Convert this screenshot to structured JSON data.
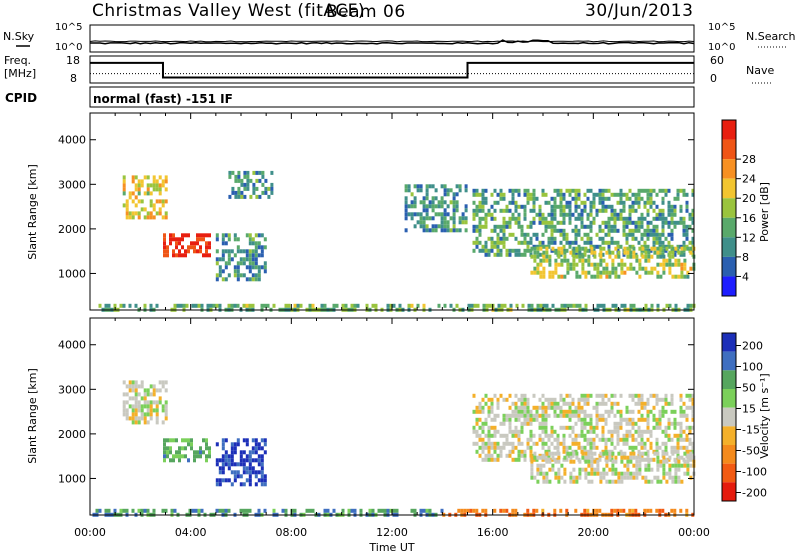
{
  "header": {
    "title": "Christmas Valley West (fitACF)",
    "beam": "Beam 06",
    "date": "30/Jun/2013"
  },
  "noise_panel": {
    "left_label": "N.Sky",
    "right_label": "N.Search",
    "ticks": [
      "10^5",
      "10^0"
    ],
    "sky_level": 0.3,
    "search_level": 0.6
  },
  "freq_panel": {
    "left_label_1": "Freq.",
    "left_label_2": "[MHz]",
    "left_ticks": [
      "18",
      "8"
    ],
    "right_label": "Nave",
    "right_ticks": [
      "60",
      "0"
    ],
    "segments": [
      {
        "start": 0,
        "end": 2.9,
        "freq": 16
      },
      {
        "start": 2.9,
        "end": 15.0,
        "freq": 10
      },
      {
        "start": 15.0,
        "end": 24,
        "freq": 16
      }
    ],
    "nave_level": 12
  },
  "cpid": {
    "label": "CPID",
    "text": "normal (fast) -151 IF"
  },
  "time_axis": {
    "label": "Time UT",
    "ticks": [
      "00:00",
      "04:00",
      "08:00",
      "12:00",
      "16:00",
      "20:00",
      "00:00"
    ],
    "range_hours": [
      0,
      24
    ]
  },
  "chart_data": [
    {
      "type": "heatmap",
      "name": "power",
      "ylabel": "Slant Range [km]",
      "yticks": [
        "1000",
        "2000",
        "3000",
        "4000"
      ],
      "ylim": [
        180,
        4600
      ],
      "colorbar_label": "Power [dB]",
      "colorbar_ticks": [
        "4",
        "8",
        "12",
        "16",
        "20",
        "24",
        "28"
      ],
      "colorbar_range": [
        0,
        32
      ],
      "colors": [
        "#1e1eff",
        "#2a5fb0",
        "#3f8f8a",
        "#59a96b",
        "#9ac43e",
        "#f2c530",
        "#f79022",
        "#ef5516",
        "#e81f10"
      ],
      "regions": [
        {
          "t0": 0.1,
          "t1": 24,
          "r0": 180,
          "r1": 320,
          "level": 0.4
        },
        {
          "t0": 1.3,
          "t1": 3.0,
          "r0": 2300,
          "r1": 3200,
          "level": 0.6
        },
        {
          "t0": 2.9,
          "t1": 4.8,
          "r0": 1400,
          "r1": 1900,
          "level": 0.95
        },
        {
          "t0": 5.0,
          "t1": 7.0,
          "r0": 900,
          "r1": 1900,
          "level": 0.3
        },
        {
          "t0": 5.5,
          "t1": 7.2,
          "r0": 2700,
          "r1": 3300,
          "level": 0.3
        },
        {
          "t0": 12.5,
          "t1": 15.0,
          "r0": 2000,
          "r1": 3000,
          "level": 0.3
        },
        {
          "t0": 15.2,
          "t1": 24,
          "r0": 1400,
          "r1": 2900,
          "level": 0.35
        },
        {
          "t0": 17.5,
          "t1": 24,
          "r0": 900,
          "r1": 1600,
          "level": 0.5
        }
      ]
    },
    {
      "type": "heatmap",
      "name": "velocity",
      "ylabel": "Slant Range [km]",
      "yticks": [
        "1000",
        "2000",
        "3000",
        "4000"
      ],
      "ylim": [
        180,
        4600
      ],
      "colorbar_label": "Velocity [m s⁻¹]",
      "colorbar_ticks": [
        "200",
        "100",
        "50",
        "15",
        "-15",
        "-50",
        "-100",
        "-200"
      ],
      "colorbar_range": [
        -250,
        250
      ],
      "colors": [
        "#1c2fb8",
        "#3f6fc0",
        "#56a65e",
        "#7bd05a",
        "#c9c9c0",
        "#f4b02a",
        "#f48a1c",
        "#f25a12",
        "#e51b0d"
      ],
      "regions": [
        {
          "t0": 0.1,
          "t1": 14,
          "r0": 180,
          "r1": 320,
          "level": -0.5
        },
        {
          "t0": 14,
          "t1": 24,
          "r0": 180,
          "r1": 320,
          "level": 0.5
        },
        {
          "t0": 1.3,
          "t1": 3.0,
          "r0": 2300,
          "r1": 3200,
          "level": 0.0
        },
        {
          "t0": 2.9,
          "t1": 4.8,
          "r0": 1400,
          "r1": 1900,
          "level": -0.4
        },
        {
          "t0": 5.0,
          "t1": 7.0,
          "r0": 900,
          "r1": 1900,
          "level": -0.85
        },
        {
          "t0": 15.2,
          "t1": 24,
          "r0": 1400,
          "r1": 2900,
          "level": 0.0
        },
        {
          "t0": 17.5,
          "t1": 24,
          "r0": 900,
          "r1": 1600,
          "level": 0.0
        }
      ]
    }
  ]
}
